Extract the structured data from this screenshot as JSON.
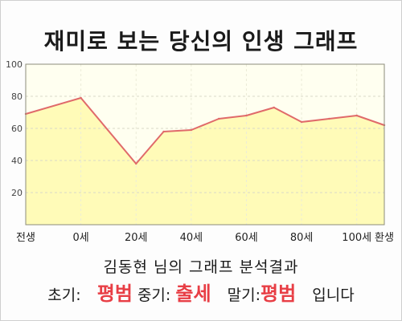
{
  "title": "재미로 보는 당신의 인생 그래프",
  "chart_data": {
    "type": "area",
    "x": [
      -20,
      0,
      20,
      30,
      40,
      50,
      60,
      70,
      80,
      90,
      100,
      110
    ],
    "y": [
      69,
      79,
      38,
      58,
      59,
      66,
      68,
      73,
      64,
      66,
      68,
      62
    ],
    "xticks": [
      {
        "x": -20,
        "label": "전생"
      },
      {
        "x": 0,
        "label": "0세"
      },
      {
        "x": 20,
        "label": "20세"
      },
      {
        "x": 40,
        "label": "40세"
      },
      {
        "x": 60,
        "label": "60세"
      },
      {
        "x": 80,
        "label": "80세"
      },
      {
        "x": 100,
        "label": "100세"
      },
      {
        "x": 110,
        "label": "환생"
      }
    ],
    "yticks": [
      20,
      40,
      60,
      80,
      100
    ],
    "xlim": [
      -20,
      110
    ],
    "ylim": [
      0,
      100
    ],
    "grid": true,
    "line_color": "#e06a6a",
    "fill_color": "#fffbb8",
    "plot_bg": "#fffff0"
  },
  "result": {
    "subtitle": "김동현 님의 그래프 분석결과",
    "early_label": "초기:",
    "early_value": "평범",
    "mid_label": "중기:",
    "mid_value": "출세",
    "late_label": "말기:",
    "late_value": "평범",
    "suffix": "입니다"
  }
}
